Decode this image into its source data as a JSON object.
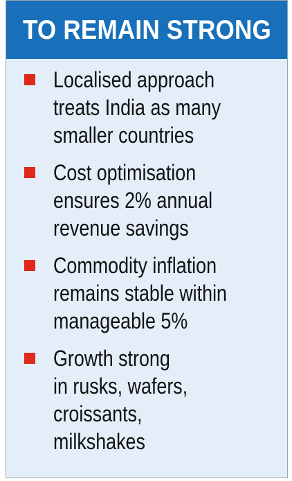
{
  "header": {
    "title": "TO REMAIN STRONG"
  },
  "points": [
    {
      "lines": [
        "Localised approach",
        "treats India as many",
        "smaller countries"
      ]
    },
    {
      "lines": [
        "Cost optimisation",
        "ensures 2% annual",
        "revenue savings"
      ]
    },
    {
      "lines": [
        "Commodity inflation",
        "remains stable within",
        "manageable 5%"
      ]
    },
    {
      "lines": [
        "Growth strong",
        "in rusks, wafers,",
        "croissants,",
        "milkshakes"
      ]
    }
  ],
  "colors": {
    "header_background": "#1770b9",
    "card_background": "#e3eef8",
    "bullet": "#e0281c"
  }
}
